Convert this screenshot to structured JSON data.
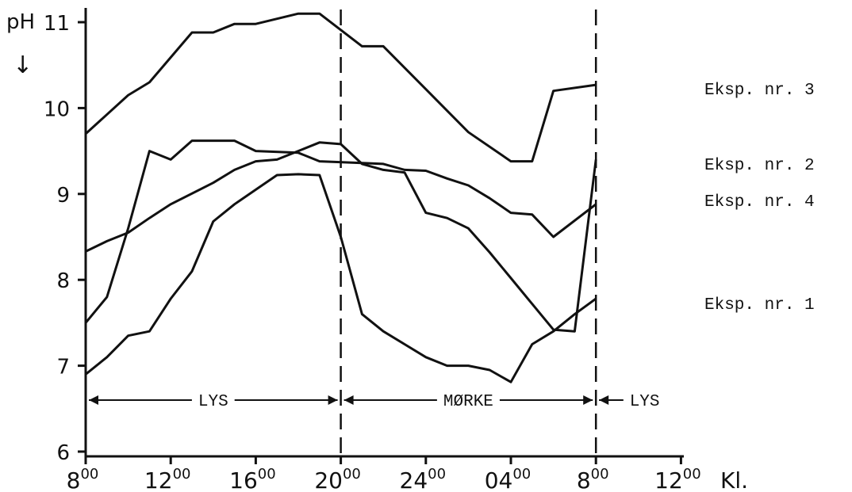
{
  "chart_data": {
    "type": "line",
    "ylabel": "pH",
    "ylabel_arrow": "↓",
    "xlabel": "Kl.",
    "ylim": [
      6,
      11.2
    ],
    "y_ticks": [
      "6",
      "7",
      "8",
      "9",
      "10",
      "11"
    ],
    "x_ticks": [
      {
        "base": "8",
        "sup": "00"
      },
      {
        "base": "12",
        "sup": "00"
      },
      {
        "base": "16",
        "sup": "00"
      },
      {
        "base": "20",
        "sup": "00"
      },
      {
        "base": "24",
        "sup": "00"
      },
      {
        "base": "04",
        "sup": "00"
      },
      {
        "base": "8",
        "sup": "00"
      },
      {
        "base": "12",
        "sup": "00"
      }
    ],
    "x_unit": "hours since 8:00",
    "grid": false,
    "series": [
      {
        "name": "Eksp. nr. 3",
        "x": [
          0,
          2,
          3,
          5,
          6,
          7,
          8,
          10,
          11,
          13,
          14,
          16,
          18,
          20,
          21,
          22,
          24
        ],
        "y": [
          9.7,
          10.15,
          10.3,
          10.88,
          10.88,
          10.98,
          10.98,
          11.1,
          11.1,
          10.72,
          10.72,
          10.22,
          9.72,
          9.38,
          9.38,
          10.2,
          10.27
        ]
      },
      {
        "name": "Eksp. nr. 2",
        "x": [
          0,
          1,
          2,
          3,
          4,
          5,
          6,
          7,
          8,
          10,
          11,
          13,
          14,
          15,
          16,
          17,
          18,
          19,
          20,
          21,
          22,
          24
        ],
        "y": [
          7.5,
          7.8,
          8.6,
          9.5,
          9.4,
          9.62,
          9.62,
          9.62,
          9.5,
          9.48,
          9.38,
          9.36,
          9.35,
          9.28,
          9.27,
          9.18,
          9.1,
          8.95,
          8.78,
          8.76,
          8.5,
          8.88
        ]
      },
      {
        "name": "Eksp. nr. 4",
        "x": [
          0,
          1,
          2,
          3,
          4,
          6,
          7,
          8,
          9,
          10,
          11,
          12,
          13,
          14,
          15,
          16,
          17,
          18,
          19,
          20,
          21,
          22,
          23,
          24
        ],
        "y": [
          8.33,
          8.45,
          8.55,
          8.72,
          8.88,
          9.13,
          9.28,
          9.38,
          9.4,
          9.5,
          9.6,
          9.58,
          9.35,
          9.28,
          9.25,
          8.78,
          8.72,
          8.6,
          8.32,
          8.02,
          7.72,
          7.42,
          7.4,
          9.4
        ]
      },
      {
        "name": "Eksp. nr. 1",
        "x": [
          0,
          1,
          2,
          3,
          4,
          5,
          6,
          7,
          8,
          9,
          10,
          11,
          12,
          13,
          14,
          15,
          16,
          17,
          18,
          19,
          20,
          21,
          22,
          23,
          24
        ],
        "y": [
          6.9,
          7.1,
          7.35,
          7.4,
          7.78,
          8.1,
          8.68,
          8.88,
          9.05,
          9.22,
          9.23,
          9.22,
          8.5,
          7.6,
          7.4,
          7.25,
          7.1,
          7.0,
          7.0,
          6.95,
          6.81,
          7.25,
          7.4,
          7.6,
          7.78
        ]
      }
    ],
    "vertical_markers": [
      12,
      24
    ],
    "period_labels": [
      {
        "label": "LYS",
        "from": 0,
        "to": 12
      },
      {
        "label": "MØRKE",
        "from": 12,
        "to": 24
      },
      {
        "label": "LYS",
        "from": 24,
        "to": 30
      }
    ]
  }
}
